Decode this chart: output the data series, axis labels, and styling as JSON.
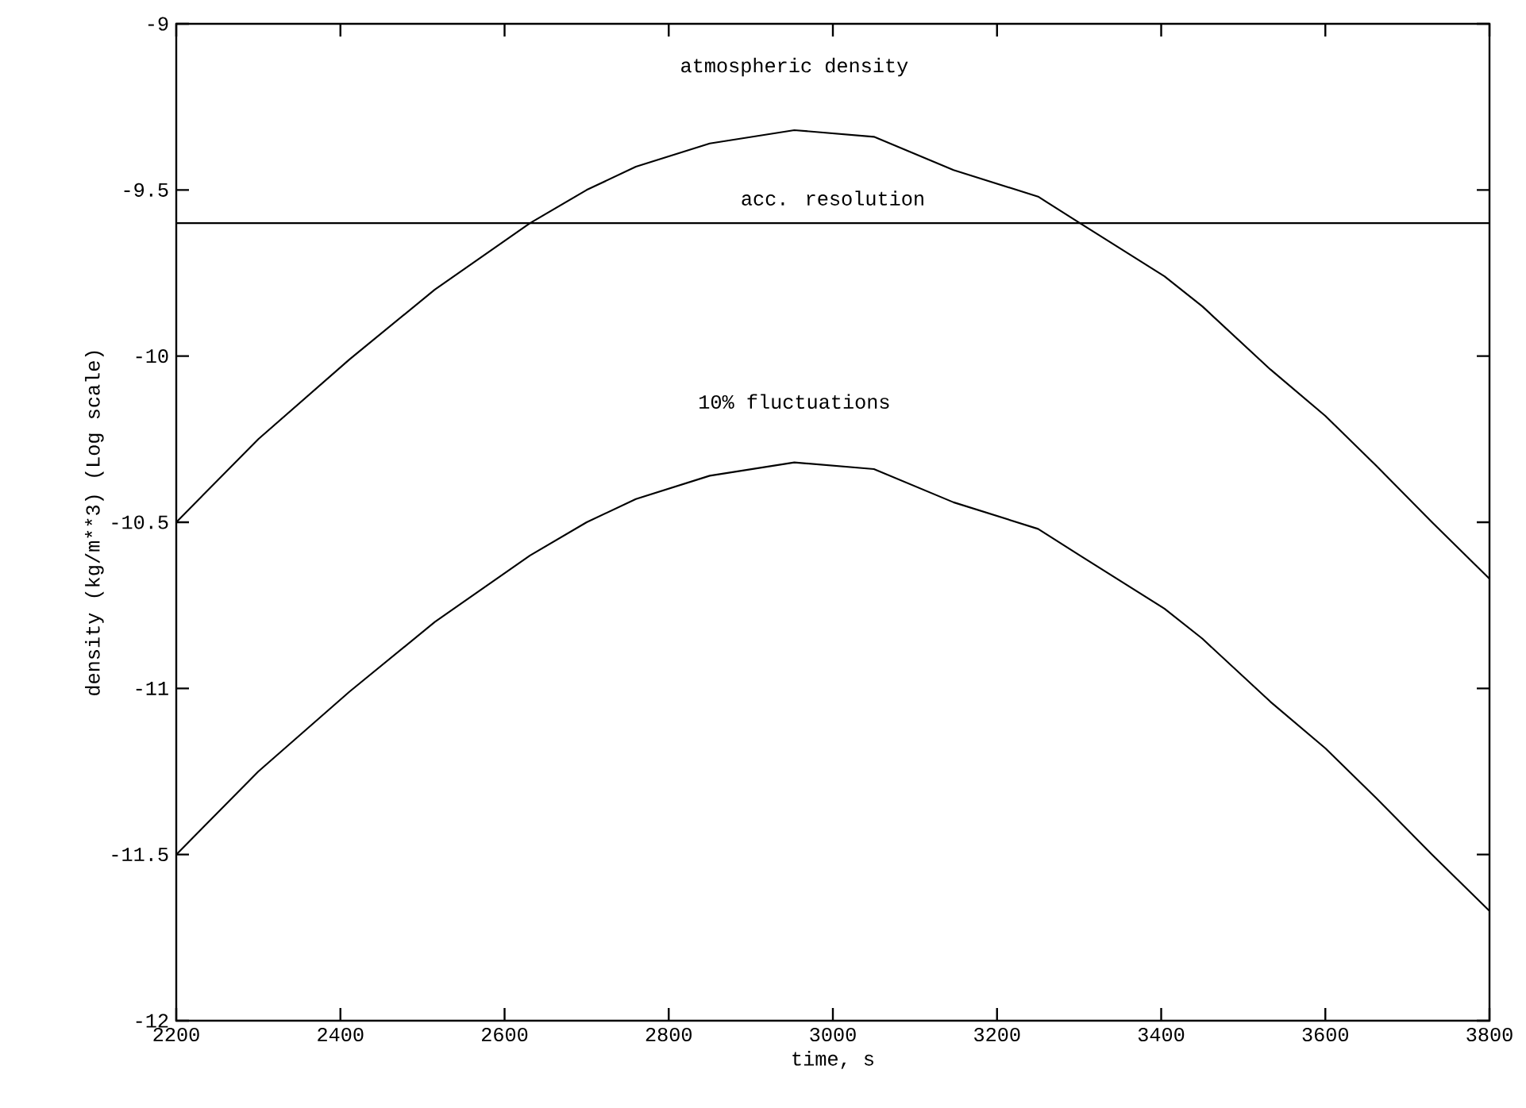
{
  "chart_data": {
    "type": "line",
    "xlabel": "time, s",
    "ylabel": "density (kg/m**3)   (Log scale)",
    "x": [
      2200,
      2300,
      2411,
      2515,
      2631,
      2700,
      2760,
      2850,
      2953,
      3050,
      3147,
      3250,
      3301,
      3404,
      3450,
      3533,
      3600,
      3662,
      3730,
      3800
    ],
    "series": [
      {
        "color": "#000000",
        "values": [
          -10.5,
          -10.25,
          -10.01,
          -9.8,
          -9.6,
          -9.5,
          -9.43,
          -9.36,
          -9.32,
          -9.34,
          -9.44,
          -9.52,
          -9.6,
          -9.76,
          -9.85,
          -10.04,
          -10.18,
          -10.33,
          -10.5,
          -10.67
        ]
      },
      {
        "color": "#000000",
        "values": [
          -11.5,
          -11.25,
          -11.01,
          -10.8,
          -10.6,
          -10.5,
          -10.43,
          -10.36,
          -10.32,
          -10.34,
          -10.44,
          -10.52,
          -10.6,
          -10.76,
          -10.85,
          -11.04,
          -11.18,
          -11.33,
          -11.5,
          -11.67
        ]
      }
    ],
    "annotations": [
      {
        "text": "atmospheric density",
        "x": 2953,
        "y": -9.32
      },
      {
        "text": "10% fluctuations",
        "x": 2953,
        "y": -10.32
      }
    ],
    "ref_lines": [
      {
        "axis": "y",
        "value": -9.6,
        "label": "acc. resolution",
        "color": "#000000"
      }
    ],
    "xlim": [
      2200,
      3800
    ],
    "ylim": [
      -12,
      -9
    ],
    "xticks": [
      2200,
      2400,
      2600,
      2800,
      3000,
      3200,
      3400,
      3600,
      3800
    ],
    "yticks": [
      -12,
      -11.5,
      -11,
      -10.5,
      -10,
      -9.5,
      -9
    ],
    "grid": false,
    "marker": "none",
    "line_style": "solid"
  }
}
